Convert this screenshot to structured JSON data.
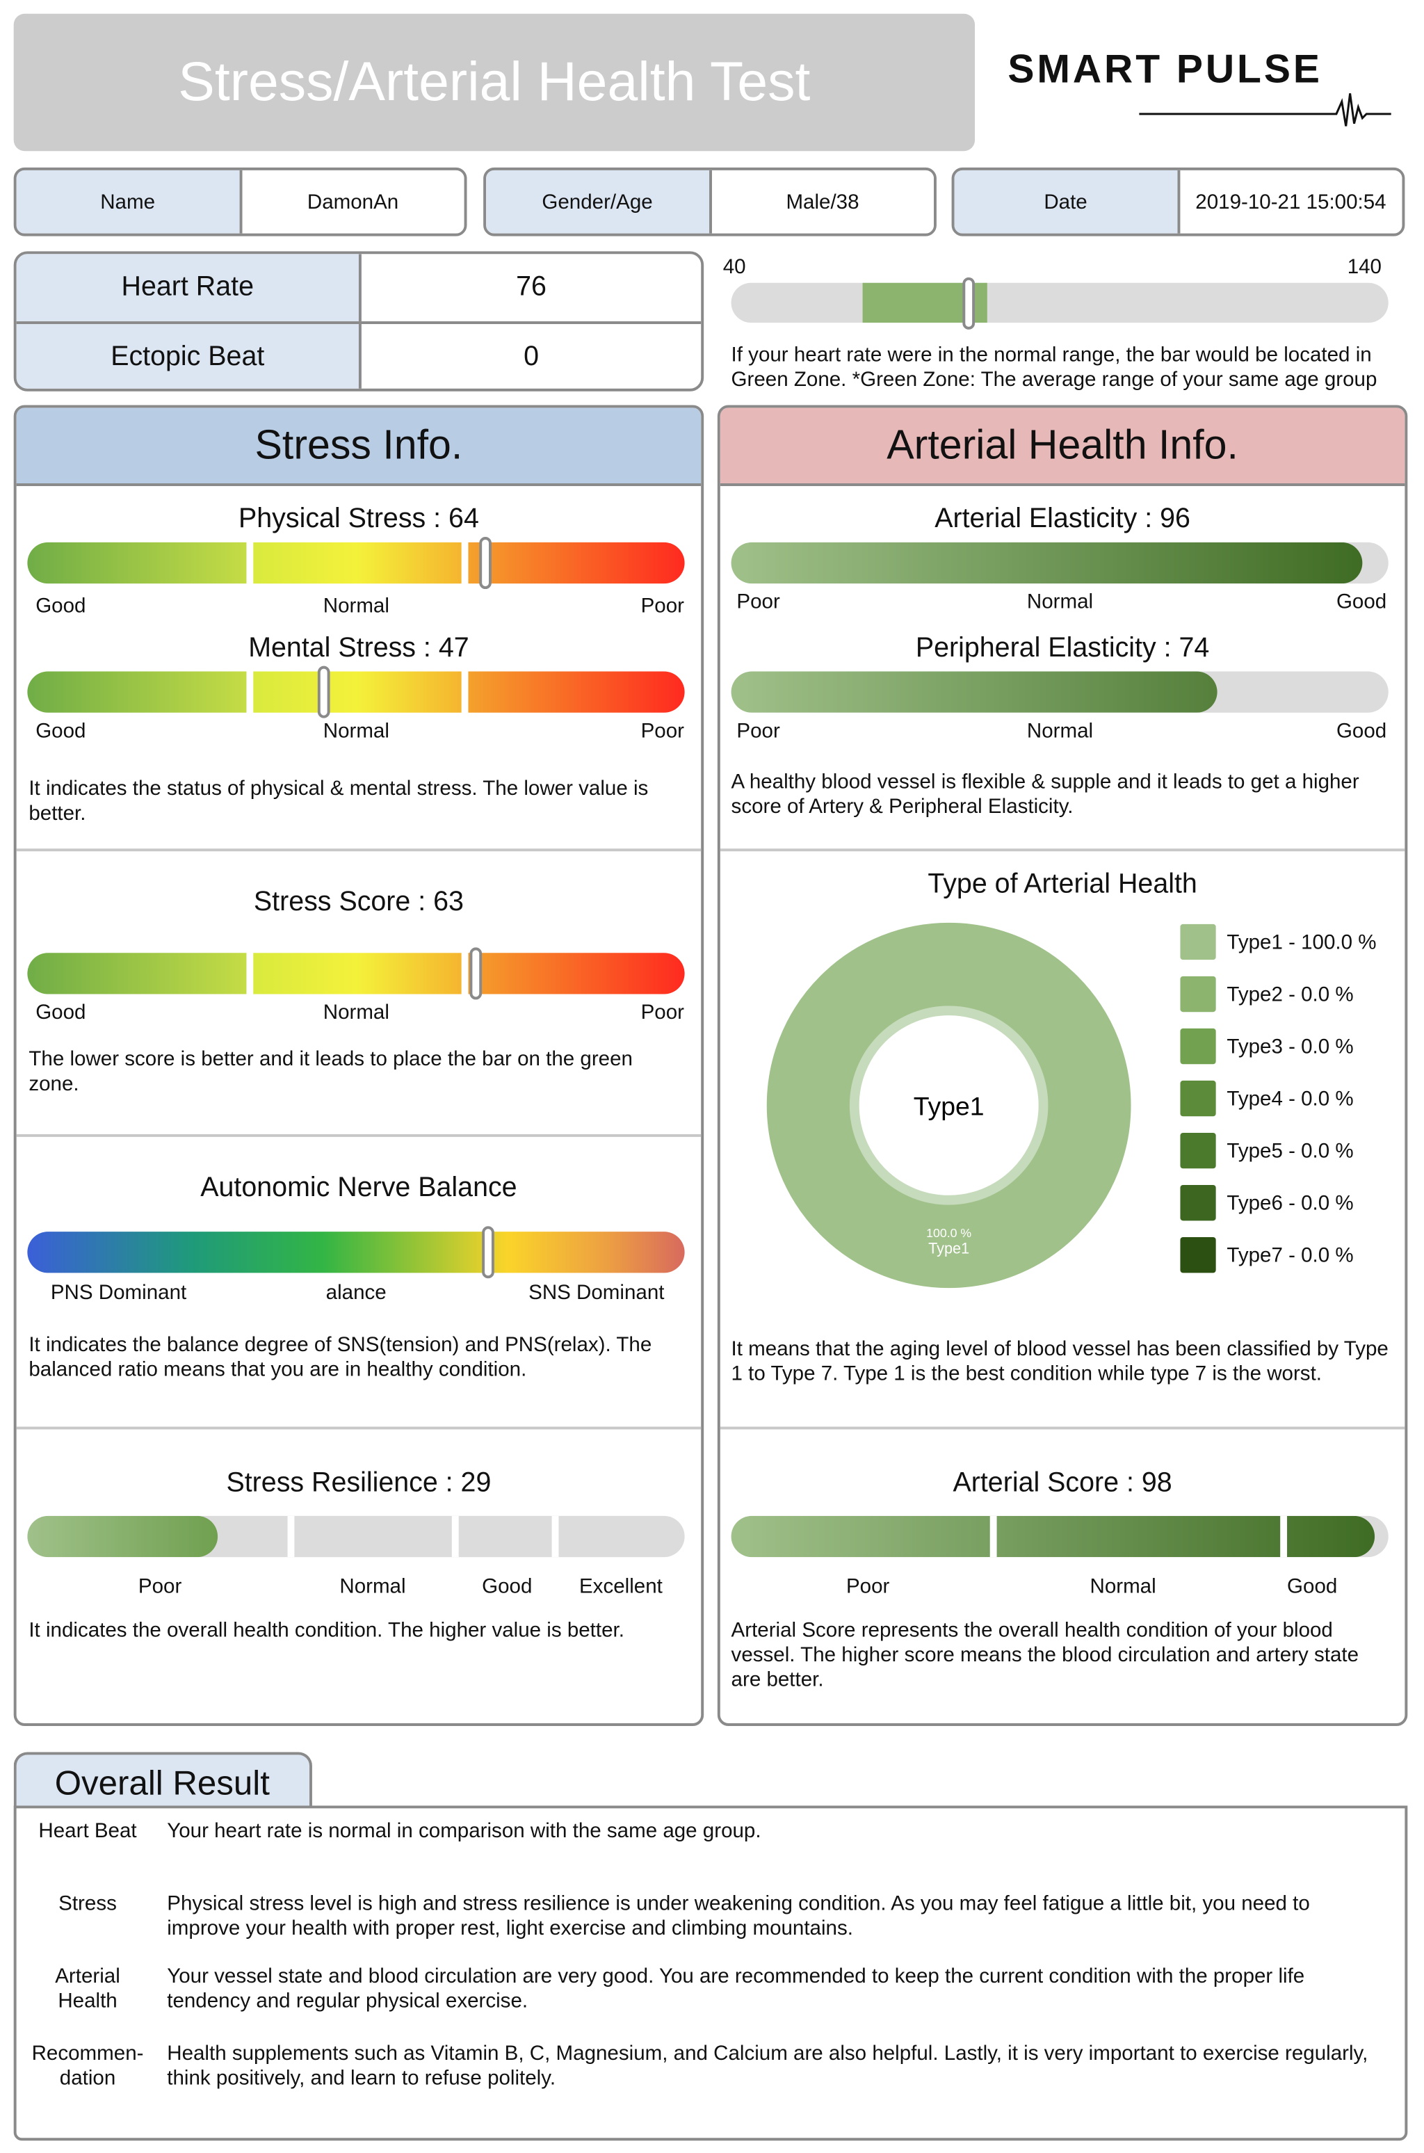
{
  "header": {
    "title": "Stress/Arterial Health Test",
    "logo_text": "SMART PULSE"
  },
  "info": {
    "name_label": "Name",
    "name": "DamonAn",
    "gender_age_label": "Gender/Age",
    "gender_age": "Male/38",
    "date_label": "Date",
    "date": "2019-10-21 15:00:54"
  },
  "heart": {
    "hr_label": "Heart Rate",
    "hr": 76,
    "ectopic_label": "Ectopic Beat",
    "ectopic": 0,
    "scale_min": 40,
    "scale_max": 140,
    "green_zone": [
      60,
      79
    ],
    "note": "If your heart rate were in the normal range, the bar would be located in Green Zone. *Green Zone: The average range of your same age group"
  },
  "stress": {
    "title": "Stress Info.",
    "physical": {
      "label": "Physical Stress : 64",
      "value": 64
    },
    "mental": {
      "label": "Mental Stress : 47",
      "value": 47
    },
    "scale_labels": [
      "Good",
      "Normal",
      "Poor"
    ],
    "stress_note": "It indicates the status of physical & mental stress. The lower value is better.",
    "score": {
      "label": "Stress Score : 63",
      "value": 63
    },
    "score_note": "The lower score is better and it leads to place the bar on the green zone.",
    "anb": {
      "label": "Autonomic Nerve Balance",
      "level": 0.7,
      "labels": [
        "PNS Dominant",
        "alance",
        "SNS Dominant"
      ]
    },
    "anb_note": "It indicates the balance degree of SNS(tension) and PNS(relax). The balanced ratio means that you are in healthy condition.",
    "resilience": {
      "label": "Stress Resilience : 29",
      "value": 29,
      "labels": [
        "Poor",
        "Normal",
        "Good",
        "Excellent"
      ]
    },
    "resilience_note": "It indicates the overall health condition. The higher value is better."
  },
  "arterial": {
    "title": "Arterial Health Info.",
    "elasticity": {
      "label": "Arterial Elasticity : 96",
      "value": 96
    },
    "peripheral": {
      "label": "Peripheral Elasticity : 74",
      "value": 74
    },
    "scale_labels": [
      "Poor",
      "Normal",
      "Good"
    ],
    "elasticity_note": "A healthy blood vessel is flexible & supple and it leads to get a higher score of Artery & Peripheral Elasticity.",
    "type_title": "Type of Arterial Health",
    "type_center": "Type1",
    "type_slice_label": [
      "100.0 %",
      "Type1"
    ],
    "types": [
      {
        "label": "Type1 - 100.0 %",
        "value": 100.0,
        "color": "#a0c18a"
      },
      {
        "label": "Type2 - 0.0 %",
        "value": 0.0,
        "color": "#8cb46f"
      },
      {
        "label": "Type3 - 0.0 %",
        "value": 0.0,
        "color": "#72a250"
      },
      {
        "label": "Type4 - 0.0 %",
        "value": 0.0,
        "color": "#5c8c3a"
      },
      {
        "label": "Type5 - 0.0 %",
        "value": 0.0,
        "color": "#4b7a2c"
      },
      {
        "label": "Type6 - 0.0 %",
        "value": 0.0,
        "color": "#3d6720"
      },
      {
        "label": "Type7 - 0.0 %",
        "value": 0.0,
        "color": "#2c4f12"
      }
    ],
    "type_note": "It means that the aging level of blood vessel has been classified by Type 1 to Type 7. Type 1 is the best condition while type 7 is the worst.",
    "score": {
      "label": "Arterial Score : 98",
      "value": 98,
      "labels": [
        "Poor",
        "Normal",
        "Good"
      ]
    },
    "score_note": "Arterial Score represents the overall health condition of your blood vessel. The higher score means the blood circulation and artery state are better."
  },
  "overall": {
    "title": "Overall Result",
    "rows": [
      {
        "label": "Heart Beat",
        "text": "Your heart rate is normal in comparison with the same age group."
      },
      {
        "label": "Stress",
        "text": "Physical stress level is high and stress resilience is under weakening condition. As you may feel fatigue a little bit, you need to improve your health with proper rest, light exercise and climbing mountains."
      },
      {
        "label": "Arterial Health",
        "text": "Your vessel state and blood circulation are very good. You are recommended to keep the current condition with the proper life tendency and regular physical exercise."
      },
      {
        "label": "Recommen-dation",
        "text": "Health supplements such as Vitamin B, C, Magnesium, and Calcium are also helpful. Lastly, it is very important to exercise regularly, think positively, and learn to refuse politely."
      }
    ]
  },
  "colors": {
    "label_bg": "#dce6f2",
    "stress_header": "#b8cce4",
    "arterial_header": "#e6b8b7",
    "green_zone": "#8db46f"
  }
}
